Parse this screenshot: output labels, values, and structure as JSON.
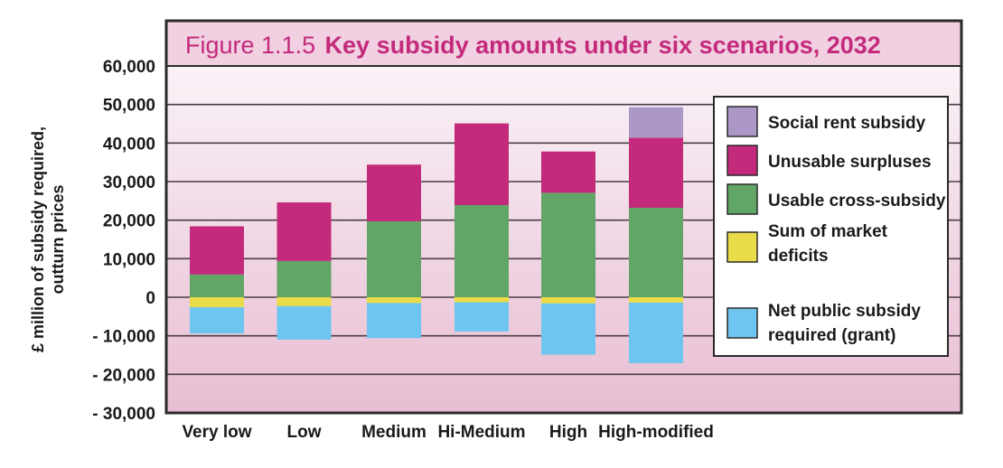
{
  "chart_data": {
    "type": "bar",
    "stacked": true,
    "title_prefix": "Figure 1.1.5",
    "title": "Key subsidy amounts under six scenarios, 2032",
    "xlabel": "",
    "ylabel": [
      "£ million of subsidy required,",
      "outturn prices"
    ],
    "ylim": [
      -30000,
      60000
    ],
    "yticks": [
      60000,
      50000,
      40000,
      30000,
      20000,
      10000,
      0,
      -10000,
      -20000,
      -30000
    ],
    "ytick_labels": [
      "60,000",
      "50,000",
      "40,000",
      "30,000",
      "20,000",
      "10,000",
      "0",
      "- 10,000",
      "- 20,000",
      "- 30,000"
    ],
    "grid": true,
    "legend_position": "right",
    "categories": [
      "Very low",
      "Low",
      "Medium",
      "Hi-Medium",
      "High",
      "High-modified"
    ],
    "series": [
      {
        "name": "Social rent subsidy",
        "color": "#ab98c6",
        "values": [
          0,
          0,
          0,
          0,
          0,
          7900
        ]
      },
      {
        "name": "Unusable surpluses",
        "color": "#c42a7c",
        "values": [
          12500,
          15200,
          14700,
          21200,
          10700,
          18200
        ]
      },
      {
        "name": "Usable cross-subsidy",
        "color": "#61a667",
        "values": [
          5900,
          9400,
          19700,
          23900,
          27100,
          23200
        ]
      },
      {
        "name": "Sum of market deficits",
        "color": "#e9dc48",
        "values": [
          -2600,
          -2300,
          -1500,
          -1300,
          -1600,
          -1400
        ]
      },
      {
        "name": "Net public subsidy required (grant)",
        "color": "#6ec6f0",
        "values": [
          -6800,
          -8700,
          -9100,
          -7600,
          -13300,
          -15700
        ]
      }
    ],
    "legend": [
      {
        "lines": [
          "Social rent subsidy"
        ],
        "color": "#ab98c6"
      },
      {
        "lines": [
          "Unusable surpluses"
        ],
        "color": "#c42a7c"
      },
      {
        "lines": [
          "Usable cross-subsidy"
        ],
        "color": "#61a667"
      },
      {
        "lines": [
          "Sum of market",
          "deficits"
        ],
        "color": "#e9dc48"
      },
      {
        "lines": [
          "Net public subsidy",
          "required (grant)"
        ],
        "color": "#6ec6f0"
      }
    ]
  }
}
